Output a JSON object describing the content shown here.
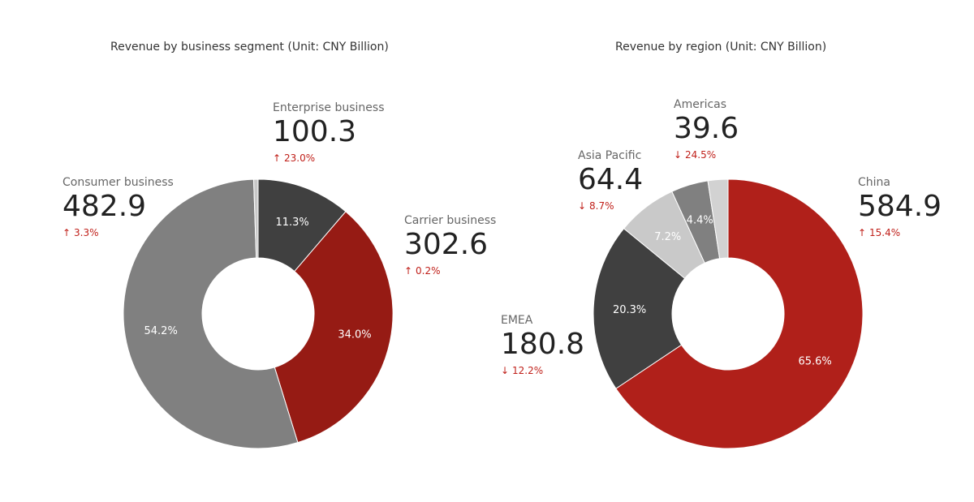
{
  "chart_data": [
    {
      "type": "pie",
      "title": "Revenue by business segment (Unit: CNY Billion)",
      "series": [
        {
          "name": "Enterprise business",
          "value": 100.3,
          "percent": "11.3%",
          "change": "23.0%",
          "direction": "up",
          "color": "#404040"
        },
        {
          "name": "Carrier business",
          "value": 302.6,
          "percent": "34.0%",
          "change": "0.2%",
          "direction": "up",
          "color": "#961b14"
        },
        {
          "name": "Consumer business",
          "value": 482.9,
          "percent": "54.2%",
          "change": "3.3%",
          "direction": "up",
          "color": "#808080"
        },
        {
          "name": "",
          "value": 4.7,
          "percent": "",
          "change": "",
          "direction": "",
          "color": "#c8c8c8"
        }
      ]
    },
    {
      "type": "pie",
      "title": "Revenue by region (Unit: CNY Billion)",
      "series": [
        {
          "name": "China",
          "value": 584.9,
          "percent": "65.6%",
          "change": "15.4%",
          "direction": "up",
          "color": "#b0201a"
        },
        {
          "name": "EMEA",
          "value": 180.8,
          "percent": "20.3%",
          "change": "12.2%",
          "direction": "down",
          "color": "#404040"
        },
        {
          "name": "Asia Pacific",
          "value": 64.4,
          "percent": "7.2%",
          "change": "8.7%",
          "direction": "down",
          "color": "#c9c9c9"
        },
        {
          "name": "Americas",
          "value": 39.6,
          "percent": "4.4%",
          "change": "24.5%",
          "direction": "down",
          "color": "#808080"
        },
        {
          "name": "",
          "value": 21.4,
          "percent": "",
          "change": "",
          "direction": "",
          "color": "#d2d2d2"
        }
      ]
    }
  ],
  "colors": {
    "accent": "#c0201a",
    "up_arrow": "↑",
    "down_arrow": "↓"
  }
}
